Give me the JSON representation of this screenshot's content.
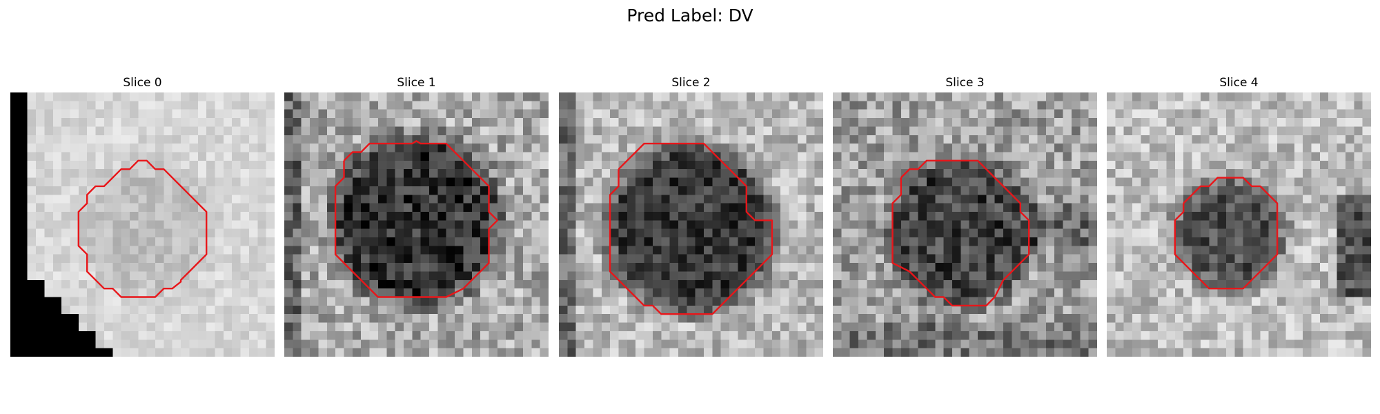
{
  "figure": {
    "title": "Pred Label: DV"
  },
  "panels": [
    {
      "title": "Slice 0",
      "base_gray": 215,
      "noise": 20,
      "dark_blob": 25,
      "contour_color": "#e8161a"
    },
    {
      "title": "Slice 1",
      "base_gray": 170,
      "noise": 55,
      "dark_blob": 120,
      "contour_color": "#e8161a"
    },
    {
      "title": "Slice 2",
      "base_gray": 185,
      "noise": 45,
      "dark_blob": 130,
      "contour_color": "#e8161a"
    },
    {
      "title": "Slice 3",
      "base_gray": 160,
      "noise": 55,
      "dark_blob": 95,
      "contour_color": "#e8161a"
    },
    {
      "title": "Slice 4",
      "base_gray": 190,
      "noise": 45,
      "dark_blob": 110,
      "contour_color": "#e8161a"
    }
  ]
}
